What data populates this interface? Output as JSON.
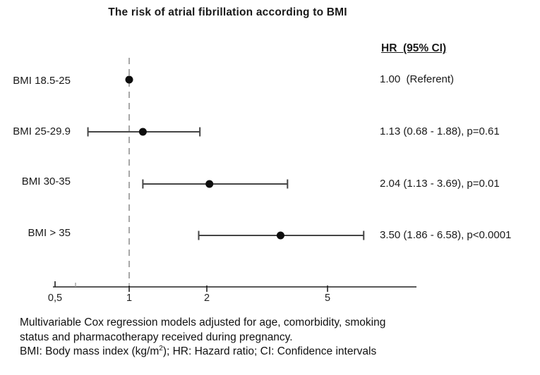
{
  "title": "The risk of atrial fibrillation according to BMI",
  "column_header": "HR  (95% CI)",
  "chart_data": {
    "type": "forest",
    "scale": "log",
    "xlim": [
      0.45,
      9
    ],
    "reference_line": 1,
    "grid": false,
    "x_ticks": [
      {
        "value": 0.5,
        "label": "0,5"
      },
      {
        "value": 1,
        "label": "1"
      },
      {
        "value": 2,
        "label": "2"
      },
      {
        "value": 5,
        "label": "5"
      }
    ],
    "rows": [
      {
        "label": "BMI 18.5-25",
        "hr": 1.0,
        "ci_low": null,
        "ci_high": null,
        "result_text": "1.00  (Referent)"
      },
      {
        "label": "BMI 25-29.9",
        "hr": 1.13,
        "ci_low": 0.68,
        "ci_high": 1.88,
        "result_text": "1.13 (0.68 - 1.88), p=0.61"
      },
      {
        "label": "BMI 30-35",
        "hr": 2.04,
        "ci_low": 1.13,
        "ci_high": 3.69,
        "result_text": "2.04 (1.13 - 3.69), p=0.01"
      },
      {
        "label": "BMI > 35",
        "hr": 3.5,
        "ci_low": 1.86,
        "ci_high": 6.58,
        "result_text": "3.50 (1.86 - 6.58), p<0.0001"
      }
    ]
  },
  "footnotes": {
    "line1": "Multivariable Cox regression models adjusted for age, comorbidity, smoking",
    "line2": "status and pharmacotherapy received during pregnancy.",
    "line3_pre": "BMI: Body mass index (kg/m",
    "line3_sup": "2",
    "line3_post": "); HR: Hazard ratio; CI: Confidence intervals"
  },
  "colors": {
    "point": "#0d0d0d",
    "error_bar": "#454545",
    "axis": "#222222",
    "reference_line": "#a8a8a8",
    "text": "#1a1a1a"
  }
}
